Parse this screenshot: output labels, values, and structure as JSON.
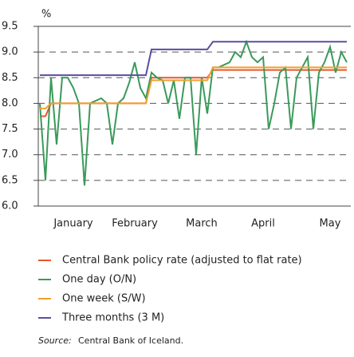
{
  "chart_data": {
    "type": "line",
    "y_unit": "%",
    "categories": [
      null,
      null,
      null,
      null,
      null,
      null,
      "January",
      null,
      null,
      null,
      null,
      null,
      null,
      null,
      null,
      null,
      null,
      "February",
      null,
      null,
      null,
      null,
      null,
      null,
      null,
      null,
      null,
      null,
      null,
      "March",
      null,
      null,
      null,
      null,
      null,
      null,
      null,
      null,
      null,
      null,
      "April",
      null,
      null,
      null,
      null,
      null,
      null,
      null,
      null,
      null,
      null,
      null,
      "May",
      null,
      null,
      null
    ],
    "ylim": [
      6.0,
      9.5
    ],
    "yticks": [
      {
        "value": 6.0,
        "label": "6.0"
      },
      6.5,
      {
        "value": 7.0,
        "label": "7.0"
      },
      7.5,
      {
        "value": 8.0,
        "label": "8.0"
      },
      8.5,
      {
        "value": 9.0,
        "label": "9.0"
      },
      9.5
    ],
    "grid": true,
    "series": [
      {
        "name": "Central Bank policy rate (adjusted to flat rate)",
        "color": "#e8582b",
        "values": [
          7.75,
          7.75,
          8.0,
          8.0,
          8.0,
          8.0,
          8.0,
          8.0,
          8.0,
          8.0,
          8.0,
          8.0,
          8.0,
          8.0,
          8.0,
          8.0,
          8.0,
          8.0,
          8.0,
          8.0,
          8.5,
          8.5,
          8.5,
          8.5,
          8.5,
          8.5,
          8.5,
          8.5,
          8.5,
          8.5,
          8.5,
          8.65,
          8.65,
          8.65,
          8.65,
          8.65,
          8.65,
          8.65,
          8.65,
          8.65,
          8.65,
          8.65,
          8.65,
          8.65,
          8.65,
          8.65,
          8.65,
          8.65,
          8.65,
          8.65,
          8.65,
          8.65,
          8.65,
          8.65,
          8.65,
          8.65
        ]
      },
      {
        "name": "One day (O/N)",
        "color": "#3a9a5a",
        "values": [
          8.0,
          6.5,
          8.5,
          7.2,
          8.5,
          8.5,
          8.3,
          8.0,
          6.4,
          8.0,
          8.05,
          8.1,
          8.0,
          7.2,
          8.0,
          8.1,
          8.4,
          8.8,
          8.3,
          8.1,
          8.6,
          8.5,
          8.45,
          8.0,
          8.45,
          7.7,
          8.5,
          8.5,
          7.0,
          8.5,
          7.8,
          8.7,
          8.7,
          8.75,
          8.8,
          9.0,
          8.9,
          9.2,
          8.9,
          8.8,
          8.9,
          7.5,
          8.0,
          8.6,
          8.7,
          7.5,
          8.5,
          8.7,
          8.9,
          7.5,
          8.6,
          8.8,
          9.1,
          8.6,
          9.0,
          8.8
        ]
      },
      {
        "name": "One week (S/W)",
        "color": "#f0a030",
        "values": [
          7.9,
          7.9,
          8.0,
          8.0,
          8.0,
          8.0,
          8.0,
          8.0,
          8.0,
          8.0,
          8.0,
          8.0,
          8.0,
          8.0,
          8.0,
          8.0,
          8.0,
          8.0,
          8.0,
          8.0,
          8.45,
          8.45,
          8.45,
          8.45,
          8.45,
          8.45,
          8.45,
          8.45,
          8.45,
          8.45,
          8.45,
          8.7,
          8.7,
          8.7,
          8.7,
          8.7,
          8.7,
          8.7,
          8.7,
          8.7,
          8.7,
          8.7,
          8.7,
          8.7,
          8.7,
          8.7,
          8.7,
          8.7,
          8.7,
          8.7,
          8.7,
          8.7,
          8.7,
          8.7,
          8.7,
          8.7
        ]
      },
      {
        "name": "Three months (3 M)",
        "color": "#5b4ea0",
        "values": [
          8.55,
          8.55,
          8.55,
          8.55,
          8.55,
          8.55,
          8.55,
          8.55,
          8.55,
          8.55,
          8.55,
          8.55,
          8.55,
          8.55,
          8.55,
          8.55,
          8.55,
          8.55,
          8.55,
          8.55,
          9.05,
          9.05,
          9.05,
          9.05,
          9.05,
          9.05,
          9.05,
          9.05,
          9.05,
          9.05,
          9.05,
          9.2,
          9.2,
          9.2,
          9.2,
          9.2,
          9.2,
          9.2,
          9.2,
          9.2,
          9.2,
          9.2,
          9.2,
          9.2,
          9.2,
          9.2,
          9.2,
          9.2,
          9.2,
          9.2,
          9.2,
          9.2,
          9.2,
          9.2,
          9.2,
          9.2
        ]
      }
    ],
    "source_label": "Source:",
    "source_text": "Central Bank of Iceland."
  }
}
